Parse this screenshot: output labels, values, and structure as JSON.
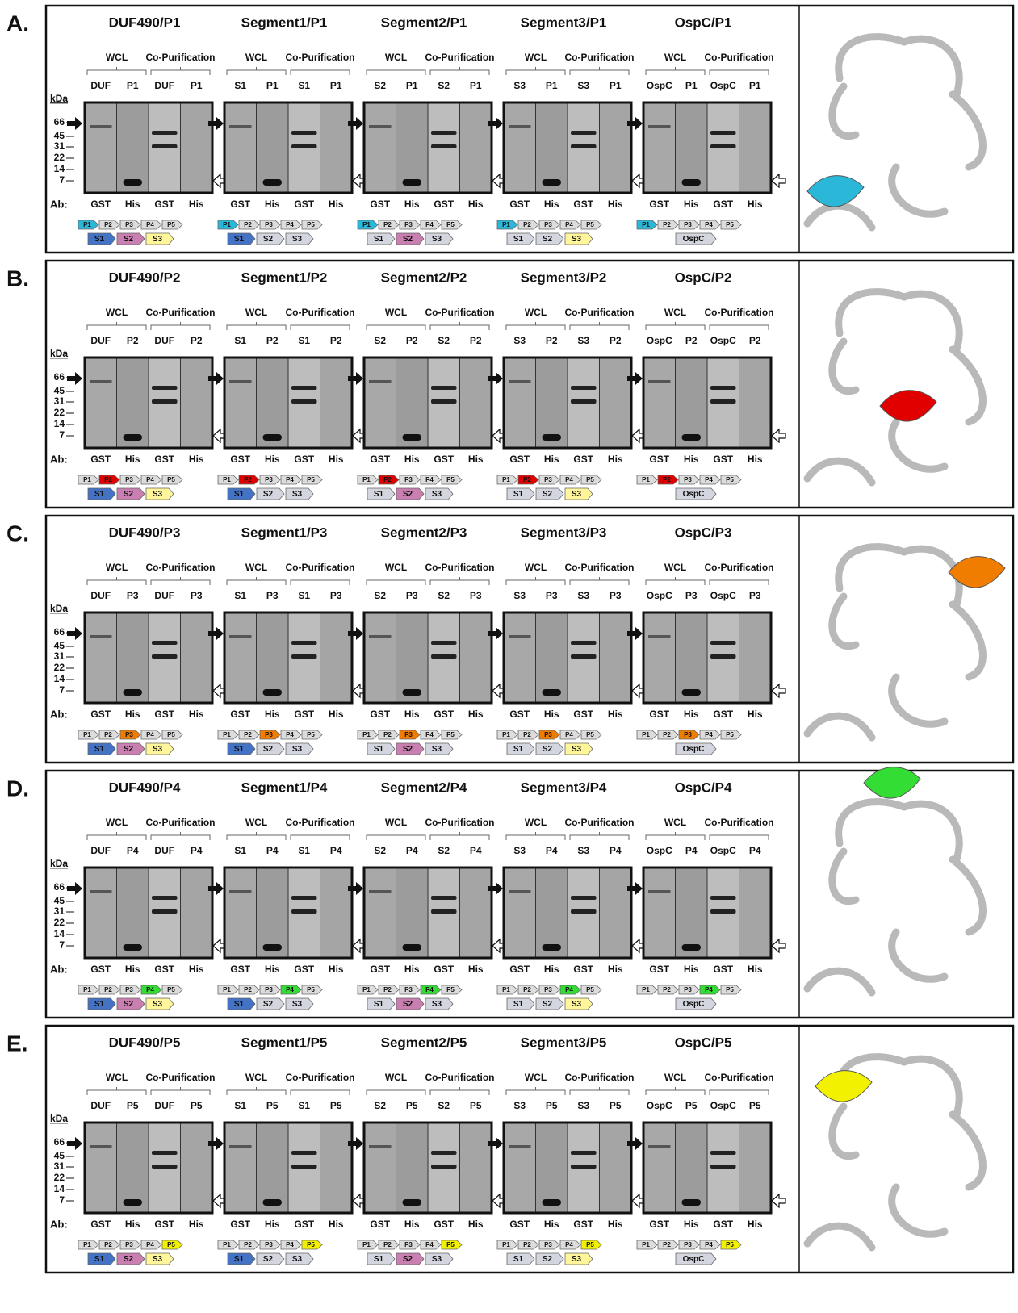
{
  "panels": [
    {
      "label": "A.",
      "color": "#2bb8d8",
      "kda": "kDa",
      "markers": [
        "66",
        "45",
        "31",
        "22",
        "14",
        "7"
      ],
      "ab_label": "Ab:",
      "groups": [
        "WCL",
        "Co-Purification"
      ],
      "antibodies": [
        "GST",
        "His",
        "GST",
        "His"
      ],
      "domains": [
        "P1",
        "P2",
        "P3",
        "P4",
        "P5"
      ],
      "blots": [
        {
          "title": "DUF490/P1",
          "lanes": [
            "DUF",
            "P1",
            "DUF",
            "P1"
          ],
          "segments": [
            {
              "name": "S1",
              "color": "#4472c4"
            },
            {
              "name": "S2",
              "color": "#c97fb0"
            },
            {
              "name": "S3",
              "color": "#fff59a"
            }
          ]
        },
        {
          "title": "Segment1/P1",
          "lanes": [
            "S1",
            "P1",
            "S1",
            "P1"
          ],
          "segments": [
            {
              "name": "S1",
              "color": "#4472c4"
            },
            {
              "name": "S2",
              "color": "#d3d6de"
            },
            {
              "name": "S3",
              "color": "#d3d6de"
            }
          ]
        },
        {
          "title": "Segment2/P1",
          "lanes": [
            "S2",
            "P1",
            "S2",
            "P1"
          ],
          "segments": [
            {
              "name": "S1",
              "color": "#d3d6de"
            },
            {
              "name": "S2",
              "color": "#c97fb0"
            },
            {
              "name": "S3",
              "color": "#d3d6de"
            }
          ]
        },
        {
          "title": "Segment3/P1",
          "lanes": [
            "S3",
            "P1",
            "S3",
            "P1"
          ],
          "segments": [
            {
              "name": "S1",
              "color": "#d3d6de"
            },
            {
              "name": "S2",
              "color": "#d3d6de"
            },
            {
              "name": "S3",
              "color": "#fff59a"
            }
          ]
        },
        {
          "title": "OspC/P1",
          "lanes": [
            "OspC",
            "P1",
            "OspC",
            "P1"
          ],
          "segments": [
            {
              "name": "OspC",
              "color": "#d3d6de"
            }
          ]
        }
      ]
    },
    {
      "label": "B.",
      "color": "#e00000",
      "kda": "kDa",
      "markers": [
        "66",
        "45",
        "31",
        "22",
        "14",
        "7"
      ],
      "ab_label": "Ab:",
      "groups": [
        "WCL",
        "Co-Purification"
      ],
      "antibodies": [
        "GST",
        "His",
        "GST",
        "His"
      ],
      "domains": [
        "P1",
        "P2",
        "P3",
        "P4",
        "P5"
      ],
      "blots": [
        {
          "title": "DUF490/P2",
          "lanes": [
            "DUF",
            "P2",
            "DUF",
            "P2"
          ],
          "segments": [
            {
              "name": "S1",
              "color": "#4472c4"
            },
            {
              "name": "S2",
              "color": "#c97fb0"
            },
            {
              "name": "S3",
              "color": "#fff59a"
            }
          ]
        },
        {
          "title": "Segment1/P2",
          "lanes": [
            "S1",
            "P2",
            "S1",
            "P2"
          ],
          "segments": [
            {
              "name": "S1",
              "color": "#4472c4"
            },
            {
              "name": "S2",
              "color": "#d3d6de"
            },
            {
              "name": "S3",
              "color": "#d3d6de"
            }
          ]
        },
        {
          "title": "Segment2/P2",
          "lanes": [
            "S2",
            "P2",
            "S2",
            "P2"
          ],
          "segments": [
            {
              "name": "S1",
              "color": "#d3d6de"
            },
            {
              "name": "S2",
              "color": "#c97fb0"
            },
            {
              "name": "S3",
              "color": "#d3d6de"
            }
          ]
        },
        {
          "title": "Segment3/P2",
          "lanes": [
            "S3",
            "P2",
            "S3",
            "P2"
          ],
          "segments": [
            {
              "name": "S1",
              "color": "#d3d6de"
            },
            {
              "name": "S2",
              "color": "#d3d6de"
            },
            {
              "name": "S3",
              "color": "#fff59a"
            }
          ]
        },
        {
          "title": "OspC/P2",
          "lanes": [
            "OspC",
            "P2",
            "OspC",
            "P2"
          ],
          "segments": [
            {
              "name": "OspC",
              "color": "#d3d6de"
            }
          ]
        }
      ]
    },
    {
      "label": "C.",
      "color": "#f07d00",
      "kda": "kDa",
      "markers": [
        "66",
        "45",
        "31",
        "22",
        "14",
        "7"
      ],
      "ab_label": "Ab:",
      "groups": [
        "WCL",
        "Co-Purification"
      ],
      "antibodies": [
        "GST",
        "His",
        "GST",
        "His"
      ],
      "domains": [
        "P1",
        "P2",
        "P3",
        "P4",
        "P5"
      ],
      "blots": [
        {
          "title": "DUF490/P3",
          "lanes": [
            "DUF",
            "P3",
            "DUF",
            "P3"
          ],
          "segments": [
            {
              "name": "S1",
              "color": "#4472c4"
            },
            {
              "name": "S2",
              "color": "#c97fb0"
            },
            {
              "name": "S3",
              "color": "#fff59a"
            }
          ]
        },
        {
          "title": "Segment1/P3",
          "lanes": [
            "S1",
            "P3",
            "S1",
            "P3"
          ],
          "segments": [
            {
              "name": "S1",
              "color": "#4472c4"
            },
            {
              "name": "S2",
              "color": "#d3d6de"
            },
            {
              "name": "S3",
              "color": "#d3d6de"
            }
          ]
        },
        {
          "title": "Segment2/P3",
          "lanes": [
            "S2",
            "P3",
            "S2",
            "P3"
          ],
          "segments": [
            {
              "name": "S1",
              "color": "#d3d6de"
            },
            {
              "name": "S2",
              "color": "#c97fb0"
            },
            {
              "name": "S3",
              "color": "#d3d6de"
            }
          ]
        },
        {
          "title": "Segment3/P3",
          "lanes": [
            "S3",
            "P3",
            "S3",
            "P3"
          ],
          "segments": [
            {
              "name": "S1",
              "color": "#d3d6de"
            },
            {
              "name": "S2",
              "color": "#d3d6de"
            },
            {
              "name": "S3",
              "color": "#fff59a"
            }
          ]
        },
        {
          "title": "OspC/P3",
          "lanes": [
            "OspC",
            "P3",
            "OspC",
            "P3"
          ],
          "segments": [
            {
              "name": "OspC",
              "color": "#d3d6de"
            }
          ]
        }
      ]
    },
    {
      "label": "D.",
      "color": "#33dd33",
      "kda": "kDa",
      "markers": [
        "66",
        "45",
        "31",
        "22",
        "14",
        "7"
      ],
      "ab_label": "Ab:",
      "groups": [
        "WCL",
        "Co-Purification"
      ],
      "antibodies": [
        "GST",
        "His",
        "GST",
        "His"
      ],
      "domains": [
        "P1",
        "P2",
        "P3",
        "P4",
        "P5"
      ],
      "blots": [
        {
          "title": "DUF490/P4",
          "lanes": [
            "DUF",
            "P4",
            "DUF",
            "P4"
          ],
          "segments": [
            {
              "name": "S1",
              "color": "#4472c4"
            },
            {
              "name": "S2",
              "color": "#c97fb0"
            },
            {
              "name": "S3",
              "color": "#fff59a"
            }
          ]
        },
        {
          "title": "Segment1/P4",
          "lanes": [
            "S1",
            "P4",
            "S1",
            "P4"
          ],
          "segments": [
            {
              "name": "S1",
              "color": "#4472c4"
            },
            {
              "name": "S2",
              "color": "#d3d6de"
            },
            {
              "name": "S3",
              "color": "#d3d6de"
            }
          ]
        },
        {
          "title": "Segment2/P4",
          "lanes": [
            "S2",
            "P4",
            "S2",
            "P4"
          ],
          "segments": [
            {
              "name": "S1",
              "color": "#d3d6de"
            },
            {
              "name": "S2",
              "color": "#c97fb0"
            },
            {
              "name": "S3",
              "color": "#d3d6de"
            }
          ]
        },
        {
          "title": "Segment3/P4",
          "lanes": [
            "S3",
            "P4",
            "S3",
            "P4"
          ],
          "segments": [
            {
              "name": "S1",
              "color": "#d3d6de"
            },
            {
              "name": "S2",
              "color": "#d3d6de"
            },
            {
              "name": "S3",
              "color": "#fff59a"
            }
          ]
        },
        {
          "title": "OspC/P4",
          "lanes": [
            "OspC",
            "P4",
            "OspC",
            "P4"
          ],
          "segments": [
            {
              "name": "OspC",
              "color": "#d3d6de"
            }
          ]
        }
      ]
    },
    {
      "label": "E.",
      "color": "#f2f200",
      "kda": "kDa",
      "markers": [
        "66",
        "45",
        "31",
        "22",
        "14",
        "7"
      ],
      "ab_label": "Ab:",
      "groups": [
        "WCL",
        "Co-Purification"
      ],
      "antibodies": [
        "GST",
        "His",
        "GST",
        "His"
      ],
      "domains": [
        "P1",
        "P2",
        "P3",
        "P4",
        "P5"
      ],
      "blots": [
        {
          "title": "DUF490/P5",
          "lanes": [
            "DUF",
            "P5",
            "DUF",
            "P5"
          ],
          "segments": [
            {
              "name": "S1",
              "color": "#4472c4"
            },
            {
              "name": "S2",
              "color": "#c97fb0"
            },
            {
              "name": "S3",
              "color": "#fff59a"
            }
          ]
        },
        {
          "title": "Segment1/P5",
          "lanes": [
            "S1",
            "P5",
            "S1",
            "P5"
          ],
          "segments": [
            {
              "name": "S1",
              "color": "#4472c4"
            },
            {
              "name": "S2",
              "color": "#d3d6de"
            },
            {
              "name": "S3",
              "color": "#d3d6de"
            }
          ]
        },
        {
          "title": "Segment2/P5",
          "lanes": [
            "S2",
            "P5",
            "S2",
            "P5"
          ],
          "segments": [
            {
              "name": "S1",
              "color": "#d3d6de"
            },
            {
              "name": "S2",
              "color": "#c97fb0"
            },
            {
              "name": "S3",
              "color": "#d3d6de"
            }
          ]
        },
        {
          "title": "Segment3/P5",
          "lanes": [
            "S3",
            "P5",
            "S3",
            "P5"
          ],
          "segments": [
            {
              "name": "S1",
              "color": "#d3d6de"
            },
            {
              "name": "S2",
              "color": "#d3d6de"
            },
            {
              "name": "S3",
              "color": "#fff59a"
            }
          ]
        },
        {
          "title": "OspC/P5",
          "lanes": [
            "OspC",
            "P5",
            "OspC",
            "P5"
          ],
          "segments": [
            {
              "name": "OspC",
              "color": "#d3d6de"
            }
          ]
        }
      ]
    }
  ]
}
